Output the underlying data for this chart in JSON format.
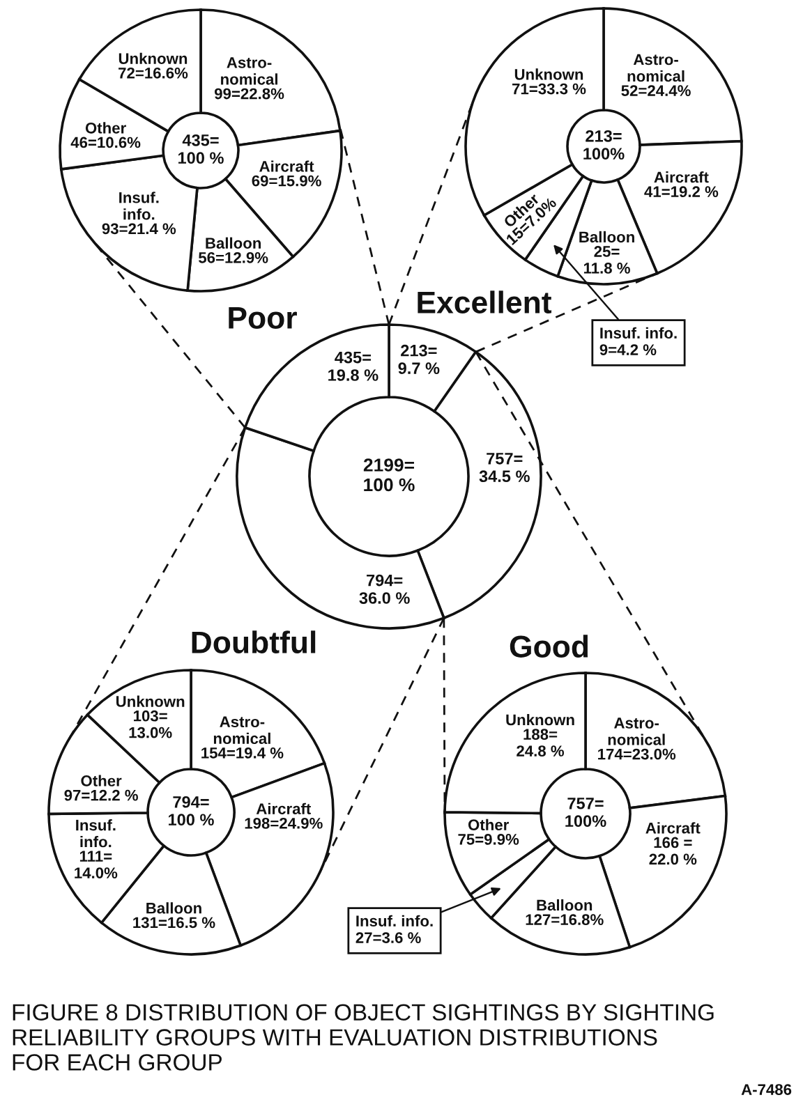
{
  "chart_data": [
    {
      "type": "donut",
      "title": "Poor",
      "categories": [
        "Astro-\nnomical",
        "Aircraft",
        "Balloon",
        "Insuf.\ninfo.",
        "Other",
        "Unknown"
      ],
      "values": [
        99,
        69,
        56,
        93,
        46,
        72
      ],
      "value_labels": [
        "99=22.8%",
        "69=15.9%",
        "56=12.9%",
        "93=21.4 %",
        "46=10.6%",
        "72=16.6%"
      ],
      "colors": [
        "#ffffff",
        "#ffffff",
        "#ffffff",
        "#ffffff",
        "#ffffff",
        "#ffffff"
      ],
      "annotations": [
        "435=\n100 %"
      ]
    },
    {
      "type": "donut",
      "title": "Excellent",
      "categories": [
        "Astro-\nnomical",
        "Aircraft",
        "Balloon",
        "Insuf. info.",
        "Other",
        "Unknown"
      ],
      "values": [
        52,
        41,
        25,
        9,
        15,
        71
      ],
      "value_labels": [
        "52=24.4%",
        "41=19.2 %",
        "25=\n11.8 %",
        "9=4.2 %",
        "15=7.0%",
        "71=33.3 %"
      ],
      "colors": [
        "#ffffff",
        "#ffffff",
        "#ffffff",
        "#ffffff",
        "#ffffff",
        "#ffffff"
      ],
      "annotations": [
        "213=\n100%"
      ]
    },
    {
      "type": "donut",
      "categories": [
        null,
        null,
        null,
        null
      ],
      "values": [
        213,
        757,
        794,
        435
      ],
      "value_labels": [
        "213=\n9.7 %",
        "757=\n34.5 %",
        "794=\n36.0 %",
        "435=\n19.8 %"
      ],
      "colors": [
        "#ffffff",
        "#ffffff",
        "#ffffff",
        "#ffffff"
      ],
      "annotations": [
        "2199=\n100 %"
      ]
    },
    {
      "type": "donut",
      "title": "Doubtful",
      "categories": [
        "Astro-\nnomical",
        "Aircraft",
        "Balloon",
        "Insuf.\ninfo.",
        "Other",
        "Unknown"
      ],
      "values": [
        154,
        198,
        131,
        111,
        97,
        103
      ],
      "value_labels": [
        "154=19.4 %",
        "198=24.9%",
        "131=16.5 %",
        "111=\n14.0%",
        "97=12.2 %",
        "103=\n13.0%"
      ],
      "colors": [
        "#ffffff",
        "#ffffff",
        "#ffffff",
        "#ffffff",
        "#ffffff",
        "#ffffff"
      ],
      "annotations": [
        "794=\n100 %"
      ]
    },
    {
      "type": "donut",
      "title": "Good",
      "categories": [
        "Astro-\nnomical",
        "Aircraft",
        "Balloon",
        "Insuf. info.",
        "Other",
        "Unknown"
      ],
      "values": [
        174,
        166,
        127,
        27,
        75,
        188
      ],
      "value_labels": [
        "174=23.0%",
        "166 =\n22.0 %",
        "127=16.8%",
        "27=3.6 %",
        "75=9.9%",
        "188=\n24.8 %"
      ],
      "colors": [
        "#ffffff",
        "#ffffff",
        "#ffffff",
        "#ffffff",
        "#ffffff",
        "#ffffff"
      ],
      "annotations": [
        "757=\n100%"
      ]
    },
    {
      "type": "other",
      "title": "FIGURE 8 DISTRIBUTION OF OBJECT SIGHTINGS BY SIGHTING\nRELIABILITY GROUPS WITH EVALUATION DISTRIBUTIONS\nFOR EACH GROUP",
      "annotations": [
        "A-7486"
      ]
    }
  ]
}
